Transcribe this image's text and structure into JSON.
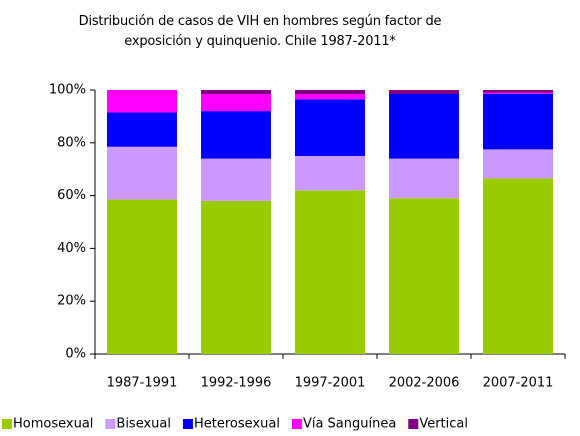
{
  "chart_data": {
    "type": "stacked_bar",
    "title": "Distribución de casos de VIH en hombres según factor de exposición y quinquenio. Chile 1987-2011*",
    "categories": [
      "1987-1991",
      "1992-1996",
      "1997-2001",
      "2002-2006",
      "2007-2011"
    ],
    "series": [
      {
        "name": "Homosexual",
        "color": "#99cc00",
        "values": [
          58.5,
          58,
          62,
          59,
          66.5
        ]
      },
      {
        "name": "Bisexual",
        "color": "#cc99ff",
        "values": [
          20,
          16,
          13,
          15,
          11
        ]
      },
      {
        "name": "Heterosexual",
        "color": "#0000ff",
        "values": [
          13,
          18,
          21.5,
          24.5,
          21
        ]
      },
      {
        "name": "Vía Sanguínea",
        "color": "#ff00ff",
        "values": [
          8.5,
          6.5,
          2,
          0,
          0.5
        ]
      },
      {
        "name": "Vertical",
        "color": "#800080",
        "values": [
          0,
          1.5,
          1.5,
          1.5,
          1
        ]
      }
    ],
    "ylim": [
      0,
      100
    ],
    "yticks": [
      {
        "value": 0,
        "label": "0%"
      },
      {
        "value": 20,
        "label": "20%"
      },
      {
        "value": 40,
        "label": "40%"
      },
      {
        "value": 60,
        "label": "60%"
      },
      {
        "value": 80,
        "label": "80%"
      },
      {
        "value": 100,
        "label": "100%"
      }
    ],
    "legend": "bottom"
  }
}
